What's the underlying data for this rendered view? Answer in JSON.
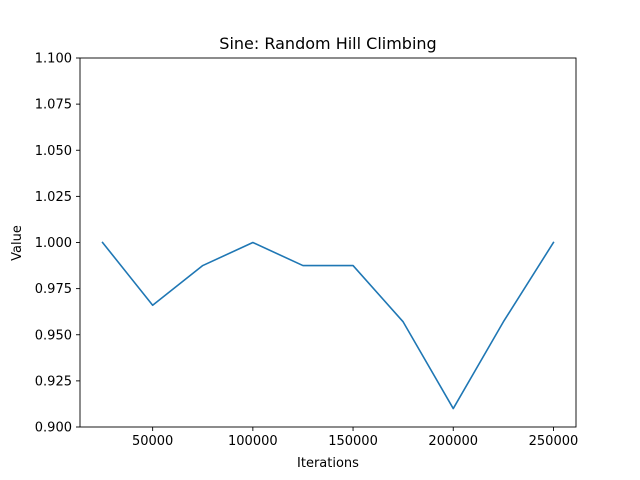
{
  "chart_data": {
    "type": "line",
    "title": "Sine: Random Hill Climbing",
    "xlabel": "Iterations",
    "ylabel": "Value",
    "xlim": [
      13750,
      261250
    ],
    "ylim": [
      0.9,
      1.1
    ],
    "grid": false,
    "legend": "none",
    "x_ticks": [
      50000,
      100000,
      150000,
      200000,
      250000
    ],
    "x_tick_labels": [
      "50000",
      "100000",
      "150000",
      "200000",
      "250000"
    ],
    "y_ticks": [
      0.9,
      0.925,
      0.95,
      0.975,
      1.0,
      1.025,
      1.05,
      1.075,
      1.1
    ],
    "y_tick_labels": [
      "0.900",
      "0.925",
      "0.950",
      "0.975",
      "1.000",
      "1.025",
      "1.050",
      "1.075",
      "1.100"
    ],
    "series": [
      {
        "color": "#1f77b4",
        "x": [
          25000,
          50000,
          75000,
          100000,
          125000,
          150000,
          175000,
          200000,
          225000,
          250000
        ],
        "y": [
          1.0,
          0.966,
          0.9875,
          1.0,
          0.9875,
          0.9875,
          0.957,
          0.91,
          0.957,
          1.0
        ]
      }
    ]
  }
}
